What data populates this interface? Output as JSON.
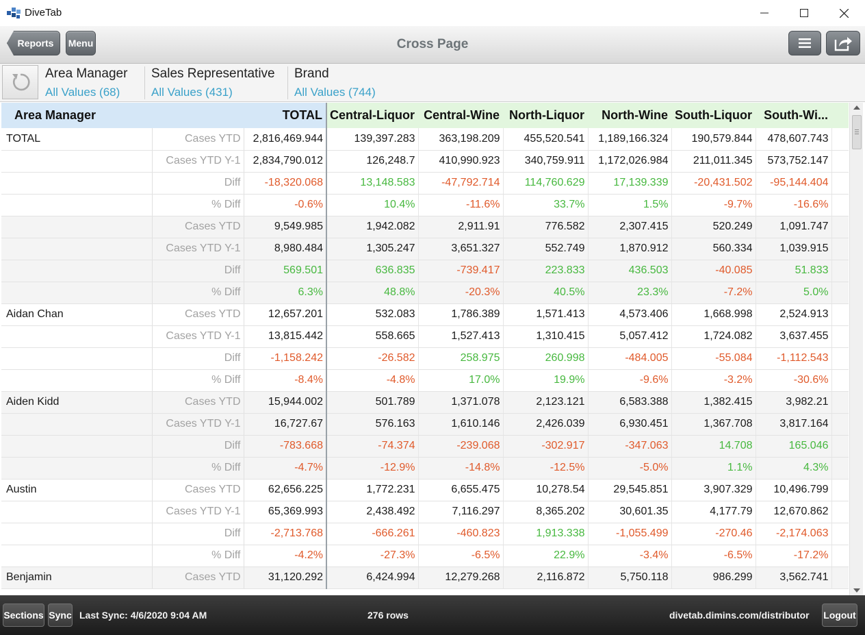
{
  "window": {
    "title": "DiveTab",
    "minimize_glyph": "—",
    "maximize_glyph": "☐",
    "close_glyph": "✕"
  },
  "toolbar": {
    "back_label": "Reports",
    "menu_label": "Menu",
    "page_title": "Cross Page",
    "list_icon": "hamburger-icon",
    "share_icon": "share-icon"
  },
  "filters": [
    {
      "label": "Area Manager",
      "value": "All Values (68)"
    },
    {
      "label": "Sales Representative",
      "value": "All Values (431)"
    },
    {
      "label": "Brand",
      "value": "All Values (744)"
    }
  ],
  "grid": {
    "columns": [
      "Area Manager",
      "TOTAL",
      "Central-Liquor",
      "Central-Wine",
      "North-Liquor",
      "North-Wine",
      "South-Liquor",
      "South-Wi..."
    ],
    "rows": [
      {
        "name": "TOTAL",
        "metric": "Cases YTD",
        "values": [
          "2,816,469.944",
          "139,397.283",
          "363,198.209",
          "455,520.541",
          "1,189,166.324",
          "190,579.844",
          "478,607.743"
        ]
      },
      {
        "name": "",
        "metric": "Cases YTD Y-1",
        "values": [
          "2,834,790.012",
          "126,248.7",
          "410,990.923",
          "340,759.911",
          "1,172,026.984",
          "211,011.345",
          "573,752.147"
        ]
      },
      {
        "name": "",
        "metric": "Diff",
        "values": [
          "-18,320.068",
          "13,148.583",
          "-47,792.714",
          "114,760.629",
          "17,139.339",
          "-20,431.502",
          "-95,144.404"
        ]
      },
      {
        "name": "",
        "metric": "% Diff",
        "values": [
          "-0.6%",
          "10.4%",
          "-11.6%",
          "33.7%",
          "1.5%",
          "-9.7%",
          "-16.6%"
        ]
      },
      {
        "name": "",
        "metric": "Cases YTD",
        "values": [
          "9,549.985",
          "1,942.082",
          "2,911.91",
          "776.582",
          "2,307.415",
          "520.249",
          "1,091.747"
        ]
      },
      {
        "name": "",
        "metric": "Cases YTD Y-1",
        "values": [
          "8,980.484",
          "1,305.247",
          "3,651.327",
          "552.749",
          "1,870.912",
          "560.334",
          "1,039.915"
        ]
      },
      {
        "name": "",
        "metric": "Diff",
        "values": [
          "569.501",
          "636.835",
          "-739.417",
          "223.833",
          "436.503",
          "-40.085",
          "51.833"
        ]
      },
      {
        "name": "",
        "metric": "% Diff",
        "values": [
          "6.3%",
          "48.8%",
          "-20.3%",
          "40.5%",
          "23.3%",
          "-7.2%",
          "5.0%"
        ]
      },
      {
        "name": "Aidan Chan",
        "metric": "Cases YTD",
        "values": [
          "12,657.201",
          "532.083",
          "1,786.389",
          "1,571.413",
          "4,573.406",
          "1,668.998",
          "2,524.913"
        ]
      },
      {
        "name": "",
        "metric": "Cases YTD Y-1",
        "values": [
          "13,815.442",
          "558.665",
          "1,527.413",
          "1,310.415",
          "5,057.412",
          "1,724.082",
          "3,637.455"
        ]
      },
      {
        "name": "",
        "metric": "Diff",
        "values": [
          "-1,158.242",
          "-26.582",
          "258.975",
          "260.998",
          "-484.005",
          "-55.084",
          "-1,112.543"
        ]
      },
      {
        "name": "",
        "metric": "% Diff",
        "values": [
          "-8.4%",
          "-4.8%",
          "17.0%",
          "19.9%",
          "-9.6%",
          "-3.2%",
          "-30.6%"
        ]
      },
      {
        "name": "Aiden Kidd",
        "metric": "Cases YTD",
        "values": [
          "15,944.002",
          "501.789",
          "1,371.078",
          "2,123.121",
          "6,583.388",
          "1,382.415",
          "3,982.21"
        ]
      },
      {
        "name": "",
        "metric": "Cases YTD Y-1",
        "values": [
          "16,727.67",
          "576.163",
          "1,610.146",
          "2,426.039",
          "6,930.451",
          "1,367.708",
          "3,817.164"
        ]
      },
      {
        "name": "",
        "metric": "Diff",
        "values": [
          "-783.668",
          "-74.374",
          "-239.068",
          "-302.917",
          "-347.063",
          "14.708",
          "165.046"
        ]
      },
      {
        "name": "",
        "metric": "% Diff",
        "values": [
          "-4.7%",
          "-12.9%",
          "-14.8%",
          "-12.5%",
          "-5.0%",
          "1.1%",
          "4.3%"
        ]
      },
      {
        "name": "Austin",
        "metric": "Cases YTD",
        "values": [
          "62,656.225",
          "1,772.231",
          "6,655.475",
          "10,278.54",
          "29,545.851",
          "3,907.329",
          "10,496.799"
        ]
      },
      {
        "name": "",
        "metric": "Cases YTD Y-1",
        "values": [
          "65,369.993",
          "2,438.492",
          "7,116.297",
          "8,365.202",
          "30,601.35",
          "4,177.79",
          "12,670.862"
        ]
      },
      {
        "name": "",
        "metric": "Diff",
        "values": [
          "-2,713.768",
          "-666.261",
          "-460.823",
          "1,913.338",
          "-1,055.499",
          "-270.46",
          "-2,174.063"
        ]
      },
      {
        "name": "",
        "metric": "% Diff",
        "values": [
          "-4.2%",
          "-27.3%",
          "-6.5%",
          "22.9%",
          "-3.4%",
          "-6.5%",
          "-17.2%"
        ]
      },
      {
        "name": "Benjamin",
        "metric": "Cases YTD",
        "values": [
          "31,120.292",
          "6,424.994",
          "12,279.268",
          "2,116.872",
          "5,750.118",
          "986.299",
          "3,562.741"
        ]
      }
    ]
  },
  "colors": {
    "negative": "#e05a2b",
    "positive": "#47b83f",
    "link": "#3aa1c9"
  },
  "bottom": {
    "sections_label": "Sections",
    "sync_label": "Sync",
    "last_sync": "Last Sync: 4/6/2020 9:04 AM",
    "row_count": "276 rows",
    "url": "divetab.dimins.com/distributor",
    "logout_label": "Logout"
  }
}
